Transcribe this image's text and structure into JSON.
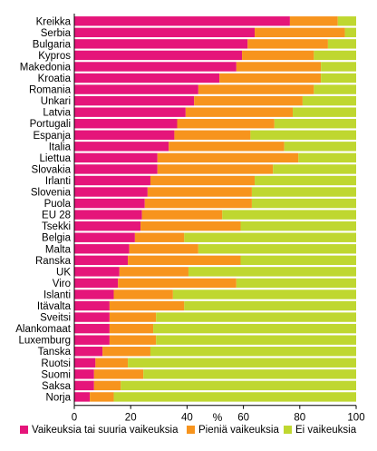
{
  "chart_data": {
    "type": "bar",
    "orientation": "horizontal",
    "stacked": true,
    "title": "",
    "xlabel": "%",
    "ylabel": "",
    "xlim": [
      0,
      100
    ],
    "x_ticks": [
      "0",
      "20",
      "40",
      "60",
      "80",
      "100"
    ],
    "grid": false,
    "legend_position": "bottom",
    "categories": [
      "Kreikka",
      "Serbia",
      "Bulgaria",
      "Kypros",
      "Makedonia",
      "Kroatia",
      "Romania",
      "Unkari",
      "Latvia",
      "Portugali",
      "Espanja",
      "Italia",
      "Liettua",
      "Slovakia",
      "Irlanti",
      "Slovenia",
      "Puola",
      "EU 28",
      "Tsekki",
      "Belgia",
      "Malta",
      "Ranska",
      "UK",
      "Viro",
      "Islanti",
      "Itävalta",
      "Sveitsi",
      "Alankomaat",
      "Luxemburg",
      "Tanska",
      "Ruotsi",
      "Suomi",
      "Saksa",
      "Norja"
    ],
    "series": [
      {
        "name": "Vaikeuksia tai suuria vaikeuksia",
        "color": "#e5157a",
        "values": [
          76.5,
          64,
          61.5,
          59.5,
          57.5,
          51.5,
          44,
          42.5,
          39.5,
          36.5,
          35.5,
          33.5,
          29.5,
          29.5,
          27,
          26,
          25,
          24,
          23.5,
          21.5,
          19.5,
          19,
          16,
          15.5,
          14,
          12.5,
          12.5,
          12.5,
          12.5,
          10,
          7.5,
          7,
          7,
          5.5
        ]
      },
      {
        "name": "Pieniä vaikeuksia",
        "color": "#f7941d",
        "values": [
          17,
          32,
          28.5,
          25.5,
          30,
          36,
          41,
          38.5,
          38,
          34.5,
          27,
          41,
          50,
          41,
          37,
          37,
          38,
          28.5,
          35.5,
          17.5,
          24.5,
          40,
          24.5,
          42,
          21,
          26.5,
          16.5,
          15.5,
          16.5,
          17,
          11.5,
          17.5,
          9.5,
          8.5
        ]
      },
      {
        "name": "Ei vaikeuksia",
        "color": "#bfd730",
        "values": [
          6.5,
          4,
          10,
          15,
          12.5,
          12.5,
          15,
          19,
          22.5,
          29,
          37.5,
          25.5,
          20.5,
          29.5,
          36,
          37,
          37,
          47.5,
          41,
          61,
          56,
          41,
          59.5,
          42.5,
          65,
          61,
          71,
          72,
          71,
          73,
          81,
          75.5,
          83.5,
          86
        ]
      }
    ]
  }
}
